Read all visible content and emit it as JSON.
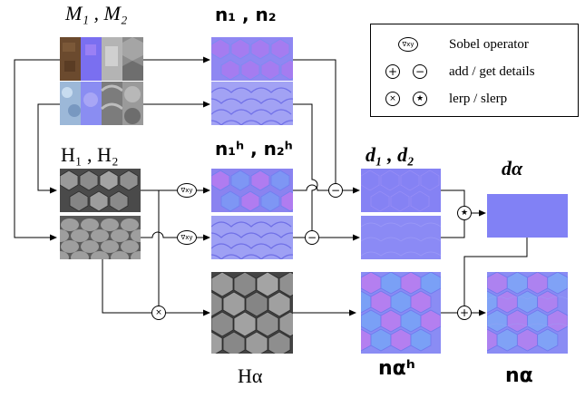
{
  "labels": {
    "M_pair": "M₁ , M₂",
    "n_pair": "n₁ , n₂",
    "H_pair": "H₁ , H₂",
    "nh_pair": "n₁ʰ , n₂ʰ",
    "d_pair": "d₁ , d₂",
    "d_alpha": "dα",
    "H_alpha": "Hα",
    "nh_alpha": "nαʰ",
    "n_alpha": "nα"
  },
  "legend": {
    "sobel_symbol": "∇xy",
    "sobel_text": "Sobel operator",
    "add_symbol": "+",
    "sub_symbol": "−",
    "add_text": "add / get details",
    "lerp_symbol": "×",
    "slerp_symbol": "★",
    "lerp_text": "lerp / slerp"
  },
  "operators": {
    "sobel": "∇xy",
    "minus": "−",
    "plus": "+",
    "times": "×",
    "star": "★"
  },
  "colors": {
    "normal_blue": "#8f8cf2",
    "normal_purple": "#b07cf0",
    "detail_blue": "#7f7ff5",
    "height_gray": "#8a8a8a"
  }
}
